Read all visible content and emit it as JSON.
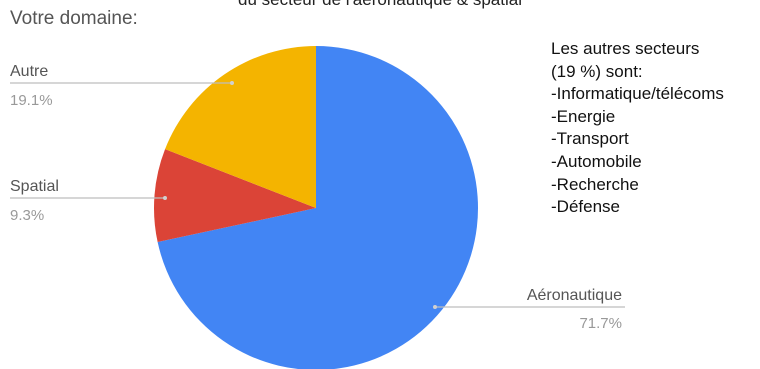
{
  "header": {
    "clipped_title": "du secteur de l'aéronautique & spatial",
    "section_label": "Votre domaine:"
  },
  "note": {
    "lines": [
      "Les autres secteurs",
      "(19 %) sont:",
      "-Informatique/télécoms",
      "-Energie",
      "-Transport",
      "-Automobile",
      "-Recherche",
      "-Défense"
    ]
  },
  "chart_data": {
    "type": "pie",
    "slices": [
      {
        "label": "Aéronautique",
        "value": 71.7,
        "value_label": "71.7%",
        "color": "#4285F4"
      },
      {
        "label": "Spatial",
        "value": 9.3,
        "value_label": "9.3%",
        "color": "#DB4437"
      },
      {
        "label": "Autre",
        "value": 19.1,
        "value_label": "19.1%",
        "color": "#F4B400"
      }
    ],
    "start": "12 o'clock",
    "direction": "clockwise",
    "label_style": "leader lines with name above value"
  }
}
